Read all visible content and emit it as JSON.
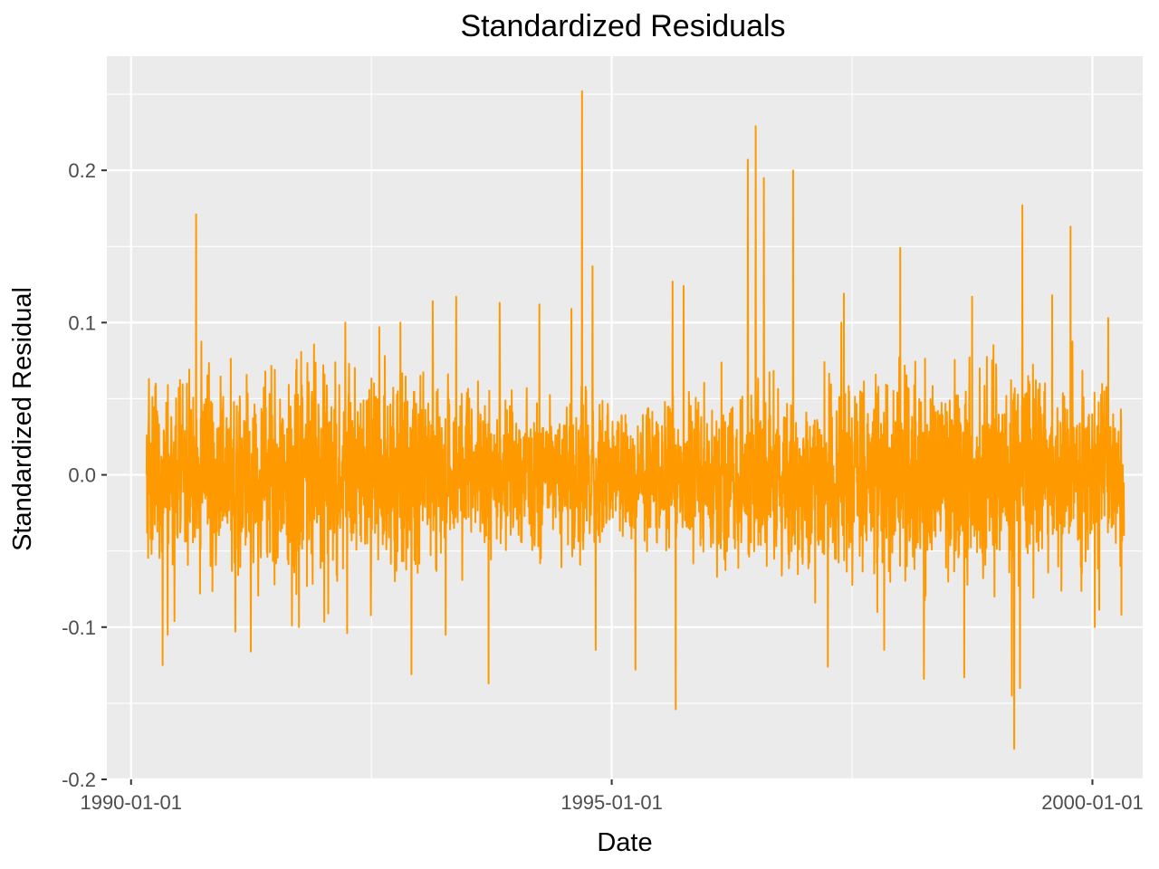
{
  "chart_data": {
    "type": "line",
    "title": "Standardized Residuals",
    "xlabel": "Date",
    "ylabel": "Standardized Residual",
    "x_axis_type": "date",
    "xlim": [
      "1989-10-01",
      "2000-07-10"
    ],
    "ylim": [
      -0.2,
      0.275
    ],
    "x_ticks": [
      "1990-01-01",
      "1995-01-01",
      "2000-01-01"
    ],
    "y_ticks": [
      -0.2,
      -0.1,
      0.0,
      0.1,
      0.2
    ],
    "y_tick_labels": [
      "-0.2",
      "-0.1",
      "0.0",
      "0.1",
      "0.2"
    ],
    "grid": true,
    "legend": "none",
    "colors": {
      "line": "#ff9900",
      "panel": "#ebebeb",
      "grid": "#ffffff",
      "tick": "#333333"
    },
    "series": [
      {
        "x_start": "1990-03-01",
        "x_end": "2000-04-30",
        "interval": "daily",
        "note_values_visible": "extreme points read from chart",
        "values_sample": [
          [
            "1990-03-01",
            0.0
          ],
          [
            "1990-03-10",
            0.063
          ],
          [
            "1990-03-20",
            -0.052
          ],
          [
            "1990-04-05",
            0.06
          ],
          [
            "1990-05-01",
            -0.125
          ],
          [
            "1990-05-20",
            -0.105
          ],
          [
            "1990-06-15",
            -0.096
          ],
          [
            "1990-08-01",
            0.06
          ],
          [
            "1990-09-05",
            0.171
          ],
          [
            "1990-09-20",
            -0.078
          ],
          [
            "1990-11-01",
            0.048
          ],
          [
            "1991-02-01",
            -0.103
          ],
          [
            "1991-04-01",
            -0.116
          ],
          [
            "1991-07-01",
            0.069
          ],
          [
            "1991-10-01",
            -0.1
          ],
          [
            "1992-01-01",
            0.072
          ],
          [
            "1992-04-01",
            -0.104
          ],
          [
            "1992-08-01",
            0.097
          ],
          [
            "1992-10-20",
            0.1
          ],
          [
            "1992-12-01",
            -0.131
          ],
          [
            "1993-02-20",
            0.114
          ],
          [
            "1993-04-10",
            -0.105
          ],
          [
            "1993-05-20",
            0.117
          ],
          [
            "1993-09-20",
            -0.137
          ],
          [
            "1993-11-01",
            0.113
          ],
          [
            "1994-04-01",
            0.112
          ],
          [
            "1994-08-01",
            0.109
          ],
          [
            "1994-09-10",
            0.252
          ],
          [
            "1994-10-20",
            0.137
          ],
          [
            "1994-11-01",
            -0.115
          ],
          [
            "1995-04-01",
            -0.128
          ],
          [
            "1995-08-20",
            0.127
          ],
          [
            "1995-09-01",
            -0.154
          ],
          [
            "1995-10-01",
            0.124
          ],
          [
            "1996-06-01",
            0.207
          ],
          [
            "1996-07-01",
            0.229
          ],
          [
            "1996-08-01",
            0.195
          ],
          [
            "1996-11-20",
            0.2
          ],
          [
            "1997-04-01",
            -0.126
          ],
          [
            "1997-06-01",
            0.119
          ],
          [
            "1997-11-01",
            -0.115
          ],
          [
            "1998-01-01",
            0.149
          ],
          [
            "1998-04-01",
            -0.134
          ],
          [
            "1998-09-01",
            -0.133
          ],
          [
            "1998-10-01",
            0.117
          ],
          [
            "1999-03-01",
            -0.145
          ],
          [
            "1999-03-10",
            -0.18
          ],
          [
            "1999-04-10",
            0.177
          ],
          [
            "1999-04-01",
            -0.14
          ],
          [
            "1999-08-01",
            0.118
          ],
          [
            "1999-10-10",
            0.163
          ],
          [
            "2000-01-10",
            -0.1
          ],
          [
            "2000-03-01",
            0.103
          ],
          [
            "2000-04-20",
            -0.092
          ],
          [
            "2000-04-30",
            -0.04
          ]
        ]
      }
    ]
  }
}
